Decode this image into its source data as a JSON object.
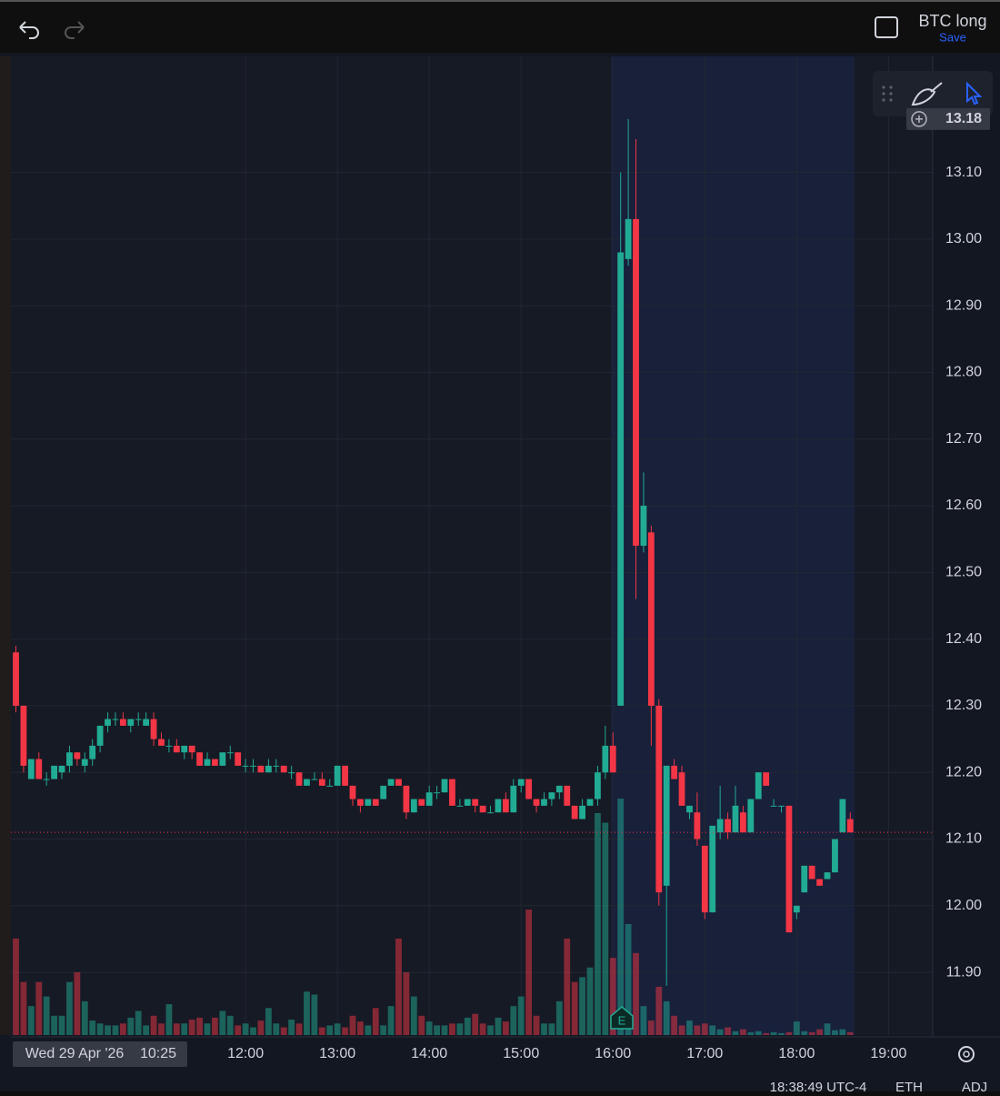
{
  "toolbar": {
    "layout_name": "BTC long",
    "save": "Save"
  },
  "status": {
    "time": "18:38:49 UTC-4",
    "session": "ETH",
    "adjust": "ADJ"
  },
  "chart_data": {
    "type": "candlestick",
    "categories": [
      "09:30",
      "09:35",
      "09:40",
      "09:45",
      "09:50",
      "09:55",
      "10:00",
      "10:05",
      "10:10",
      "10:15",
      "10:20",
      "10:25",
      "10:30",
      "10:35",
      "10:40",
      "10:45",
      "10:50",
      "10:55",
      "11:00",
      "11:05",
      "11:10",
      "11:15",
      "11:20",
      "11:25",
      "11:30",
      "11:35",
      "11:40",
      "11:45",
      "11:50",
      "11:55",
      "12:00",
      "12:05",
      "12:10",
      "12:15",
      "12:20",
      "12:25",
      "12:30",
      "12:35",
      "12:40",
      "12:45",
      "12:50",
      "12:55",
      "13:00",
      "13:05",
      "13:10",
      "13:15",
      "13:20",
      "13:25",
      "13:30",
      "13:35",
      "13:40",
      "13:45",
      "13:50",
      "13:55",
      "14:00",
      "14:05",
      "14:10",
      "14:15",
      "14:20",
      "14:25",
      "14:30",
      "14:35",
      "14:40",
      "14:45",
      "14:50",
      "14:55",
      "15:00",
      "15:05",
      "15:10",
      "15:15",
      "15:20",
      "15:25",
      "15:30",
      "15:35",
      "15:40",
      "15:45",
      "15:50",
      "15:55",
      "16:00",
      "16:05",
      "16:10",
      "16:15",
      "16:20",
      "16:25",
      "16:30",
      "16:35",
      "16:40",
      "16:45",
      "16:50",
      "16:55",
      "17:00",
      "17:05",
      "17:10",
      "17:15",
      "17:20",
      "17:25",
      "17:30",
      "17:35",
      "17:40",
      "17:45",
      "17:50",
      "17:55",
      "18:00",
      "18:05",
      "18:10",
      "18:15",
      "18:20",
      "18:25",
      "18:30",
      "18:35"
    ],
    "open": [
      12.38,
      12.3,
      12.19,
      12.22,
      12.19,
      12.19,
      12.2,
      12.21,
      12.23,
      12.21,
      12.22,
      12.24,
      12.27,
      12.28,
      12.28,
      12.27,
      12.28,
      12.27,
      12.28,
      12.25,
      12.24,
      12.24,
      12.23,
      12.24,
      12.23,
      12.21,
      12.22,
      12.21,
      12.23,
      12.23,
      12.21,
      12.21,
      12.21,
      12.2,
      12.21,
      12.21,
      12.2,
      12.2,
      12.18,
      12.19,
      12.19,
      12.18,
      12.18,
      12.21,
      12.18,
      12.16,
      12.15,
      12.16,
      12.16,
      12.18,
      12.19,
      12.18,
      12.14,
      12.16,
      12.15,
      12.17,
      12.17,
      12.19,
      12.15,
      12.15,
      12.16,
      12.15,
      12.14,
      12.14,
      12.16,
      12.14,
      12.18,
      12.19,
      12.16,
      12.15,
      12.16,
      12.17,
      12.18,
      12.15,
      12.13,
      12.15,
      12.16,
      12.2,
      12.24,
      12.3,
      12.97,
      13.03,
      12.54,
      12.56,
      12.3,
      12.03,
      12.21,
      12.2,
      12.14,
      12.14,
      12.09,
      11.99,
      12.11,
      12.13,
      12.11,
      12.14,
      12.11,
      12.16,
      12.2,
      12.15,
      12.15,
      12.15,
      11.99,
      12.02,
      12.06,
      12.04,
      12.04,
      12.05,
      12.11,
      12.13
    ],
    "high": [
      12.39,
      12.3,
      12.22,
      12.23,
      12.2,
      12.21,
      12.21,
      12.24,
      12.23,
      12.23,
      12.25,
      12.27,
      12.29,
      12.29,
      12.29,
      12.28,
      12.29,
      12.29,
      12.29,
      12.26,
      12.25,
      12.25,
      12.24,
      12.24,
      12.23,
      12.23,
      12.22,
      12.23,
      12.24,
      12.23,
      12.22,
      12.22,
      12.21,
      12.22,
      12.22,
      12.21,
      12.21,
      12.2,
      12.19,
      12.2,
      12.2,
      12.19,
      12.21,
      12.21,
      12.18,
      12.16,
      12.16,
      12.16,
      12.18,
      12.19,
      12.19,
      12.18,
      12.16,
      12.16,
      12.18,
      12.18,
      12.19,
      12.19,
      12.16,
      12.16,
      12.16,
      12.15,
      12.15,
      12.16,
      12.17,
      12.19,
      12.19,
      12.19,
      12.16,
      12.17,
      12.17,
      12.18,
      12.18,
      12.15,
      12.16,
      12.16,
      12.21,
      12.27,
      12.26,
      13.1,
      13.18,
      13.15,
      12.65,
      12.57,
      12.31,
      12.21,
      12.22,
      12.21,
      12.15,
      12.17,
      12.09,
      12.12,
      12.18,
      12.14,
      12.18,
      12.15,
      12.16,
      12.2,
      12.2,
      12.16,
      12.15,
      12.15,
      12.0,
      12.06,
      12.06,
      12.04,
      12.05,
      12.1,
      12.16,
      12.14
    ],
    "low": [
      12.29,
      12.2,
      12.19,
      12.19,
      12.18,
      12.19,
      12.19,
      12.2,
      12.21,
      12.2,
      12.21,
      12.23,
      12.26,
      12.27,
      12.27,
      12.26,
      12.27,
      12.27,
      12.24,
      12.24,
      12.23,
      12.23,
      12.22,
      12.22,
      12.21,
      12.21,
      12.21,
      12.21,
      12.22,
      12.21,
      12.2,
      12.2,
      12.2,
      12.2,
      12.2,
      12.2,
      12.19,
      12.18,
      12.18,
      12.19,
      12.18,
      12.18,
      12.18,
      12.18,
      12.15,
      12.14,
      12.15,
      12.15,
      12.16,
      12.18,
      12.18,
      12.13,
      12.14,
      12.15,
      12.15,
      12.16,
      12.17,
      12.15,
      12.15,
      12.15,
      12.14,
      12.14,
      12.14,
      12.14,
      12.14,
      12.14,
      12.17,
      12.16,
      12.14,
      12.15,
      12.15,
      12.16,
      12.15,
      12.13,
      12.13,
      12.15,
      12.15,
      12.19,
      12.2,
      12.3,
      12.96,
      12.46,
      12.53,
      12.24,
      12.0,
      11.88,
      12.19,
      12.15,
      12.13,
      12.09,
      11.98,
      11.99,
      12.1,
      12.1,
      12.11,
      12.11,
      12.11,
      12.16,
      12.18,
      12.15,
      12.14,
      11.96,
      11.98,
      12.02,
      12.04,
      12.03,
      12.04,
      12.05,
      12.11,
      12.11
    ],
    "close": [
      12.3,
      12.21,
      12.22,
      12.19,
      12.19,
      12.21,
      12.21,
      12.23,
      12.22,
      12.22,
      12.24,
      12.27,
      12.28,
      12.28,
      12.27,
      12.28,
      12.28,
      12.28,
      12.25,
      12.24,
      12.24,
      12.23,
      12.24,
      12.23,
      12.21,
      12.22,
      12.21,
      12.23,
      12.23,
      12.21,
      12.21,
      12.21,
      12.2,
      12.21,
      12.21,
      12.2,
      12.2,
      12.18,
      12.19,
      12.19,
      12.18,
      12.18,
      12.21,
      12.18,
      12.16,
      12.15,
      12.16,
      12.15,
      12.18,
      12.19,
      12.18,
      12.14,
      12.16,
      12.15,
      12.17,
      12.17,
      12.19,
      12.15,
      12.15,
      12.16,
      12.15,
      12.14,
      12.14,
      12.16,
      12.14,
      12.18,
      12.19,
      12.16,
      12.15,
      12.16,
      12.17,
      12.18,
      12.15,
      12.13,
      12.15,
      12.16,
      12.2,
      12.24,
      12.2,
      12.98,
      13.03,
      12.54,
      12.6,
      12.3,
      12.02,
      12.21,
      12.19,
      12.15,
      12.15,
      12.1,
      11.99,
      12.12,
      12.13,
      12.11,
      12.15,
      12.11,
      12.16,
      12.2,
      12.18,
      12.15,
      12.15,
      11.96,
      12.0,
      12.06,
      12.04,
      12.03,
      12.05,
      12.1,
      12.16,
      12.11
    ],
    "volume": [
      100,
      55,
      30,
      55,
      40,
      20,
      20,
      55,
      65,
      35,
      15,
      12,
      10,
      10,
      12,
      18,
      25,
      10,
      20,
      12,
      32,
      12,
      12,
      16,
      18,
      12,
      18,
      25,
      20,
      10,
      12,
      8,
      15,
      28,
      12,
      8,
      16,
      12,
      45,
      42,
      8,
      10,
      12,
      8,
      20,
      14,
      10,
      28,
      10,
      30,
      100,
      65,
      40,
      20,
      14,
      10,
      10,
      12,
      12,
      18,
      22,
      12,
      10,
      18,
      14,
      30,
      40,
      130,
      20,
      12,
      12,
      35,
      100,
      55,
      60,
      70,
      230,
      220,
      80,
      245,
      115,
      85,
      30,
      15,
      50,
      35,
      20,
      10,
      15,
      10,
      12,
      10,
      6,
      8,
      4,
      6,
      3,
      4,
      2,
      3,
      2,
      3,
      14,
      4,
      3,
      6,
      12,
      5,
      6,
      3
    ],
    "up_color": "#22ab94",
    "down_color": "#f23645",
    "ylim": [
      11.806,
      13.274
    ],
    "yticks": [
      {
        "value": 11.9,
        "label": "11.90"
      },
      {
        "value": 12.0,
        "label": "12.00"
      },
      {
        "value": 12.1,
        "label": "12.10"
      },
      {
        "value": 12.2,
        "label": "12.20"
      },
      {
        "value": 12.3,
        "label": "12.30"
      },
      {
        "value": 12.4,
        "label": "12.40"
      },
      {
        "value": 12.5,
        "label": "12.50"
      },
      {
        "value": 12.6,
        "label": "12.60"
      },
      {
        "value": 12.7,
        "label": "12.70"
      },
      {
        "value": 12.8,
        "label": "12.80"
      },
      {
        "value": 12.9,
        "label": "12.90"
      },
      {
        "value": 13.0,
        "label": "13.00"
      },
      {
        "value": 13.1,
        "label": "13.10"
      }
    ],
    "xticks": [
      "12:00",
      "13:00",
      "14:00",
      "15:00",
      "16:00",
      "17:00",
      "18:00",
      "19:00"
    ],
    "grid": true,
    "price_label": 13.18,
    "crosshair_date": "Wed 29 Apr '26",
    "crosshair_time": "10:25",
    "event_marker": "E"
  }
}
